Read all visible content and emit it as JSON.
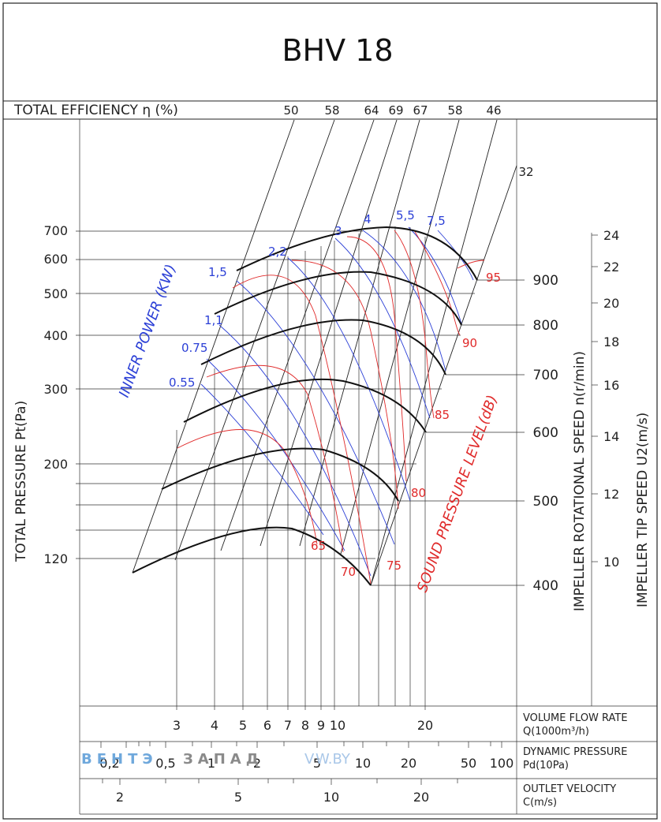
{
  "title": "BHV 18",
  "watermark": {
    "part1": "ВЕНТЭ",
    "part2": "ЗАПАД",
    "part3": "V",
    "part4": "W.BY"
  },
  "colors": {
    "power": "#2b3fd6",
    "sound": "#e02a2a",
    "lines": "#222222"
  },
  "chart_data": {
    "type": "line",
    "title": "BHV 18",
    "ylabel": "TOTAL PRESSURE Pt(Pa)",
    "yticks": [
      "120",
      "200",
      "300",
      "400",
      "500",
      "600",
      "700"
    ],
    "efficiency": {
      "label": "TOTAL EFFICIENCY η (%)",
      "values": [
        "50",
        "58",
        "64",
        "69",
        "67",
        "58",
        "46",
        "32"
      ]
    },
    "rotational_speed": {
      "label": "IMPELLER ROTATIONAL SPEED n(r/min)",
      "values": [
        "400",
        "500",
        "600",
        "700",
        "800",
        "900"
      ]
    },
    "tip_speed": {
      "label": "IMPELLER TIP SPEED U2(m/s)",
      "ticks": [
        "10",
        "12",
        "14",
        "16",
        "18",
        "20",
        "22",
        "24"
      ]
    },
    "inner_power": {
      "label": "INNER POWER (KW)",
      "values": [
        "0.55",
        "0.75",
        "1,1",
        "1,5",
        "2,2",
        "3",
        "4",
        "5,5",
        "7,5"
      ]
    },
    "sound_pressure": {
      "label": "SOUND PRESSURE LEVEL(dB)",
      "values": [
        "65",
        "70",
        "75",
        "80",
        "85",
        "90",
        "95"
      ]
    },
    "volume_flow": {
      "label": "VOLUME FLOW RATE",
      "unit": "Q(1000m³/h)",
      "ticks": [
        "3",
        "4",
        "5",
        "6",
        "7",
        "8",
        "9",
        "10",
        "20"
      ]
    },
    "dynamic_pressure": {
      "label": "DYNAMIC PRESSURE",
      "unit": "Pd(10Pa)",
      "ticks": [
        "0,2",
        "0,5",
        "1",
        "2",
        "5",
        "10",
        "20",
        "50",
        "100"
      ]
    },
    "outlet_velocity": {
      "label": "OUTLET VELOCITY",
      "unit": "C(m/s)",
      "ticks": [
        "2",
        "5",
        "10",
        "20"
      ]
    }
  }
}
